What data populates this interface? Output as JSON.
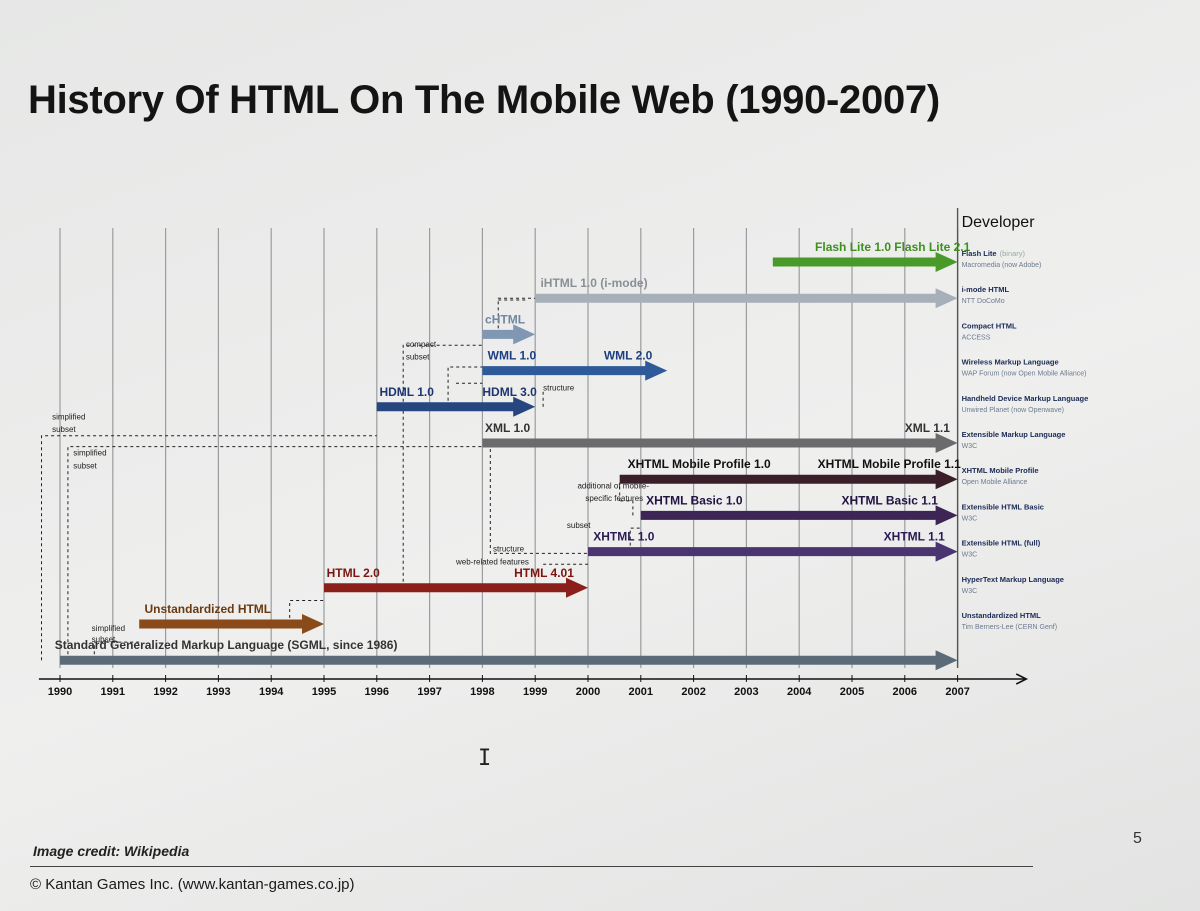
{
  "slide": {
    "title": "History Of HTML On The Mobile Web (1990-2007)",
    "image_credit": "Image credit: Wikipedia",
    "copyright": "© Kantan Games Inc. (www.kantan-games.co.jp)",
    "page_number": "5",
    "cursor_icon": "text-cursor-icon"
  },
  "diagram": {
    "years": [
      "1990",
      "1991",
      "1992",
      "1993",
      "1994",
      "1995",
      "1996",
      "1997",
      "1998",
      "1999",
      "2000",
      "2001",
      "2002",
      "2003",
      "2004",
      "2005",
      "2006",
      "2007"
    ],
    "developer_header": "Developer",
    "lanes": [
      {
        "id": "flash",
        "color": "#4a9a2a",
        "start": 2003.5,
        "end": 2007,
        "lane": 0,
        "labels": [
          {
            "text": "Flash Lite 1.0",
            "at": 2004.3,
            "above": true,
            "color": "#3f8f20"
          },
          {
            "text": "Flash Lite 2.1",
            "at": 2005.8,
            "above": true,
            "color": "#3f8f20"
          }
        ],
        "dev_name": "Flash Lite",
        "dev_tag": "(binary)",
        "dev_org": "Macromedia (now Adobe)"
      },
      {
        "id": "ihtml",
        "color": "#a7afb9",
        "start": 1999,
        "end": 2007,
        "lane": 1,
        "labels": [
          {
            "text": "iHTML 1.0 (i-mode)",
            "at": 1999.1,
            "above": true,
            "color": "#8a8f95"
          }
        ],
        "dev_name": "i-mode HTML",
        "dev_tag": "",
        "dev_org": "NTT DoCoMo"
      },
      {
        "id": "chtml",
        "color": "#7f97b3",
        "start": 1998,
        "end": 1999,
        "lane": 2,
        "labels": [
          {
            "text": "cHTML",
            "at": 1998.05,
            "above": true,
            "color": "#6f87a3"
          }
        ],
        "dev_name": "Compact HTML",
        "dev_tag": "",
        "dev_org": "ACCESS"
      },
      {
        "id": "wml",
        "color": "#2e5a9a",
        "start": 1998,
        "end": 2001.5,
        "lane": 3,
        "labels": [
          {
            "text": "WML 1.0",
            "at": 1998.1,
            "above": true,
            "color": "#1d3f80"
          },
          {
            "text": "WML 2.0",
            "at": 2000.3,
            "above": true,
            "color": "#1d3f80"
          }
        ],
        "dev_name": "Wireless Markup Language",
        "dev_tag": "",
        "dev_org": "WAP Forum (now Open Mobile Alliance)"
      },
      {
        "id": "hdml",
        "color": "#27457e",
        "start": 1996,
        "end": 1999,
        "lane": 4,
        "labels": [
          {
            "text": "HDML 1.0",
            "at": 1996.05,
            "above": true,
            "color": "#1d3570"
          },
          {
            "text": "HDML 3.0",
            "at": 1998.0,
            "above": true,
            "color": "#1d3570"
          }
        ],
        "dev_name": "Handheld Device Markup Language",
        "dev_tag": "",
        "dev_org": "Unwired Planet (now Openwave)"
      },
      {
        "id": "xml",
        "color": "#6b6b6e",
        "start": 1998,
        "end": 2007,
        "lane": 5,
        "labels": [
          {
            "text": "XML 1.0",
            "at": 1998.05,
            "above": true,
            "color": "#333"
          },
          {
            "text": "XML 1.1",
            "at": 2006.0,
            "above": true,
            "color": "#333"
          }
        ],
        "dev_name": "Extensible Markup Language",
        "dev_tag": "",
        "dev_org": "W3C"
      },
      {
        "id": "xhtml-mp",
        "color": "#3a1f2a",
        "start": 2000.6,
        "end": 2007,
        "lane": 6,
        "labels": [
          {
            "text": "XHTML Mobile Profile 1.0",
            "at": 2000.75,
            "above": true,
            "color": "#111"
          },
          {
            "text": "XHTML Mobile Profile 1.1",
            "at": 2004.35,
            "above": true,
            "color": "#111"
          }
        ],
        "dev_name": "XHTML Mobile Profile",
        "dev_tag": "",
        "dev_org": "Open Mobile Alliance"
      },
      {
        "id": "xhtml-basic",
        "color": "#3d2655",
        "start": 2001,
        "end": 2007,
        "lane": 7,
        "labels": [
          {
            "text": "XHTML Basic 1.0",
            "at": 2001.1,
            "above": true,
            "color": "#221340"
          },
          {
            "text": "XHTML Basic 1.1",
            "at": 2004.8,
            "above": true,
            "color": "#221340"
          }
        ],
        "dev_name": "Extensible HTML Basic",
        "dev_tag": "",
        "dev_org": "W3C"
      },
      {
        "id": "xhtml",
        "color": "#4a3570",
        "start": 2000,
        "end": 2007,
        "lane": 8,
        "labels": [
          {
            "text": "XHTML 1.0",
            "at": 2000.1,
            "above": true,
            "color": "#2a1a55"
          },
          {
            "text": "XHTML 1.1",
            "at": 2005.6,
            "above": true,
            "color": "#2a1a55"
          }
        ],
        "dev_name": "Extensible HTML (full)",
        "dev_tag": "",
        "dev_org": "W3C"
      },
      {
        "id": "html",
        "color": "#8b1f1a",
        "start": 1995,
        "end": 2000,
        "lane": 9,
        "labels": [
          {
            "text": "HTML 2.0",
            "at": 1995.05,
            "above": true,
            "color": "#7a1510"
          },
          {
            "text": "HTML 4.01",
            "at": 1998.6,
            "above": true,
            "color": "#7a1510"
          }
        ],
        "dev_name": "HyperText Markup Language",
        "dev_tag": "",
        "dev_org": "W3C"
      },
      {
        "id": "unstd-html",
        "color": "#8a4a1a",
        "start": 1991.5,
        "end": 1995,
        "lane": 10,
        "labels": [
          {
            "text": "Unstandardized HTML",
            "at": 1991.6,
            "above": true,
            "color": "#6a3a10"
          }
        ],
        "dev_name": "Unstandardized HTML",
        "dev_tag": "",
        "dev_org": "Tim Berners-Lee (CERN Genf)"
      },
      {
        "id": "sgml",
        "color": "#5b6c78",
        "start": 1990,
        "end": 2007,
        "lane": 11,
        "labels": [
          {
            "text": "Standard Generalized Markup Language (SGML, since 1986)",
            "at": 1989.9,
            "above": true,
            "color": "#333"
          }
        ],
        "dev_name": "",
        "dev_tag": "",
        "dev_org": ""
      }
    ],
    "annotations": [
      {
        "text": "compact",
        "x": 1996.55,
        "lane": 2.35
      },
      {
        "text": "subset",
        "x": 1996.55,
        "lane": 2.7
      },
      {
        "text": "structure",
        "x": 1999.15,
        "lane": 3.55
      },
      {
        "text": "simplified",
        "x": 1989.85,
        "lane": 4.35
      },
      {
        "text": "subset",
        "x": 1989.85,
        "lane": 4.7
      },
      {
        "text": "simplified",
        "x": 1990.25,
        "lane": 5.35
      },
      {
        "text": "subset",
        "x": 1990.25,
        "lane": 5.7
      },
      {
        "text": "additional of mobile-",
        "x": 1999.8,
        "lane": 6.25
      },
      {
        "text": "specific features",
        "x": 1999.95,
        "lane": 6.6
      },
      {
        "text": "subset",
        "x": 1999.6,
        "lane": 7.35
      },
      {
        "text": "structure",
        "x": 1998.2,
        "lane": 8.0
      },
      {
        "text": "web-related features",
        "x": 1997.5,
        "lane": 8.35
      },
      {
        "text": "simplified",
        "x": 1990.6,
        "lane": 10.2
      },
      {
        "text": "subset",
        "x": 1990.6,
        "lane": 10.5
      }
    ]
  }
}
